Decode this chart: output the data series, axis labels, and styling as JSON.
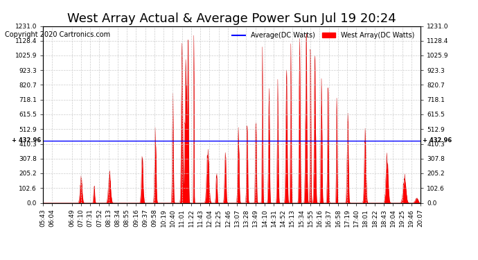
{
  "title": "West Array Actual & Average Power Sun Jul 19 20:24",
  "copyright": "Copyright 2020 Cartronics.com",
  "legend_avg": "Average(DC Watts)",
  "legend_west": "West Array(DC Watts)",
  "avg_value": 432.96,
  "ymax": 1231.0,
  "ymin": 0.0,
  "yticks": [
    0.0,
    102.6,
    205.2,
    307.8,
    410.3,
    512.9,
    615.5,
    718.1,
    820.7,
    923.3,
    1025.9,
    1128.4,
    1231.0
  ],
  "avg_line_color": "#0000ff",
  "fill_color": "#ff0000",
  "line_color": "#cc0000",
  "background_color": "#ffffff",
  "grid_color": "#cccccc",
  "title_fontsize": 13,
  "tick_fontsize": 6.5,
  "xtick_labels": [
    "05:43",
    "06:04",
    "06:49",
    "07:10",
    "07:31",
    "07:52",
    "08:13",
    "08:34",
    "08:55",
    "09:16",
    "09:37",
    "09:58",
    "10:19",
    "10:40",
    "11:01",
    "11:22",
    "11:43",
    "12:04",
    "12:25",
    "12:46",
    "13:07",
    "13:28",
    "13:49",
    "14:10",
    "14:31",
    "14:52",
    "15:13",
    "15:34",
    "15:55",
    "16:16",
    "16:37",
    "16:58",
    "17:19",
    "17:40",
    "18:01",
    "18:22",
    "18:43",
    "19:04",
    "19:25",
    "19:46",
    "20:07"
  ],
  "gauss_centers": [
    430,
    460,
    495,
    570,
    600,
    640,
    661,
    675,
    688,
    670,
    720,
    740,
    760,
    790,
    810,
    830,
    845,
    860,
    880,
    900,
    910,
    930,
    945,
    955,
    965,
    980,
    995,
    1015,
    1040,
    1080,
    1130,
    1170,
    1200
  ],
  "gauss_widths": [
    2.1,
    1.2,
    2.4,
    1.8,
    1.5,
    1.2,
    1.5,
    0.9,
    0.6,
    2.4,
    2.4,
    1.2,
    1.5,
    1.5,
    1.2,
    1.2,
    0.9,
    1.2,
    1.2,
    1.5,
    0.9,
    1.2,
    1.5,
    0.9,
    1.5,
    1.2,
    1.2,
    0.9,
    1.5,
    1.8,
    2.4,
    3.0,
    3.6
  ],
  "gauss_heights": [
    180,
    120,
    200,
    300,
    500,
    680,
    1100,
    1180,
    1230,
    950,
    350,
    200,
    350,
    500,
    580,
    650,
    780,
    820,
    750,
    900,
    1050,
    1100,
    1150,
    1100,
    950,
    870,
    750,
    680,
    600,
    450,
    320,
    180,
    80
  ]
}
